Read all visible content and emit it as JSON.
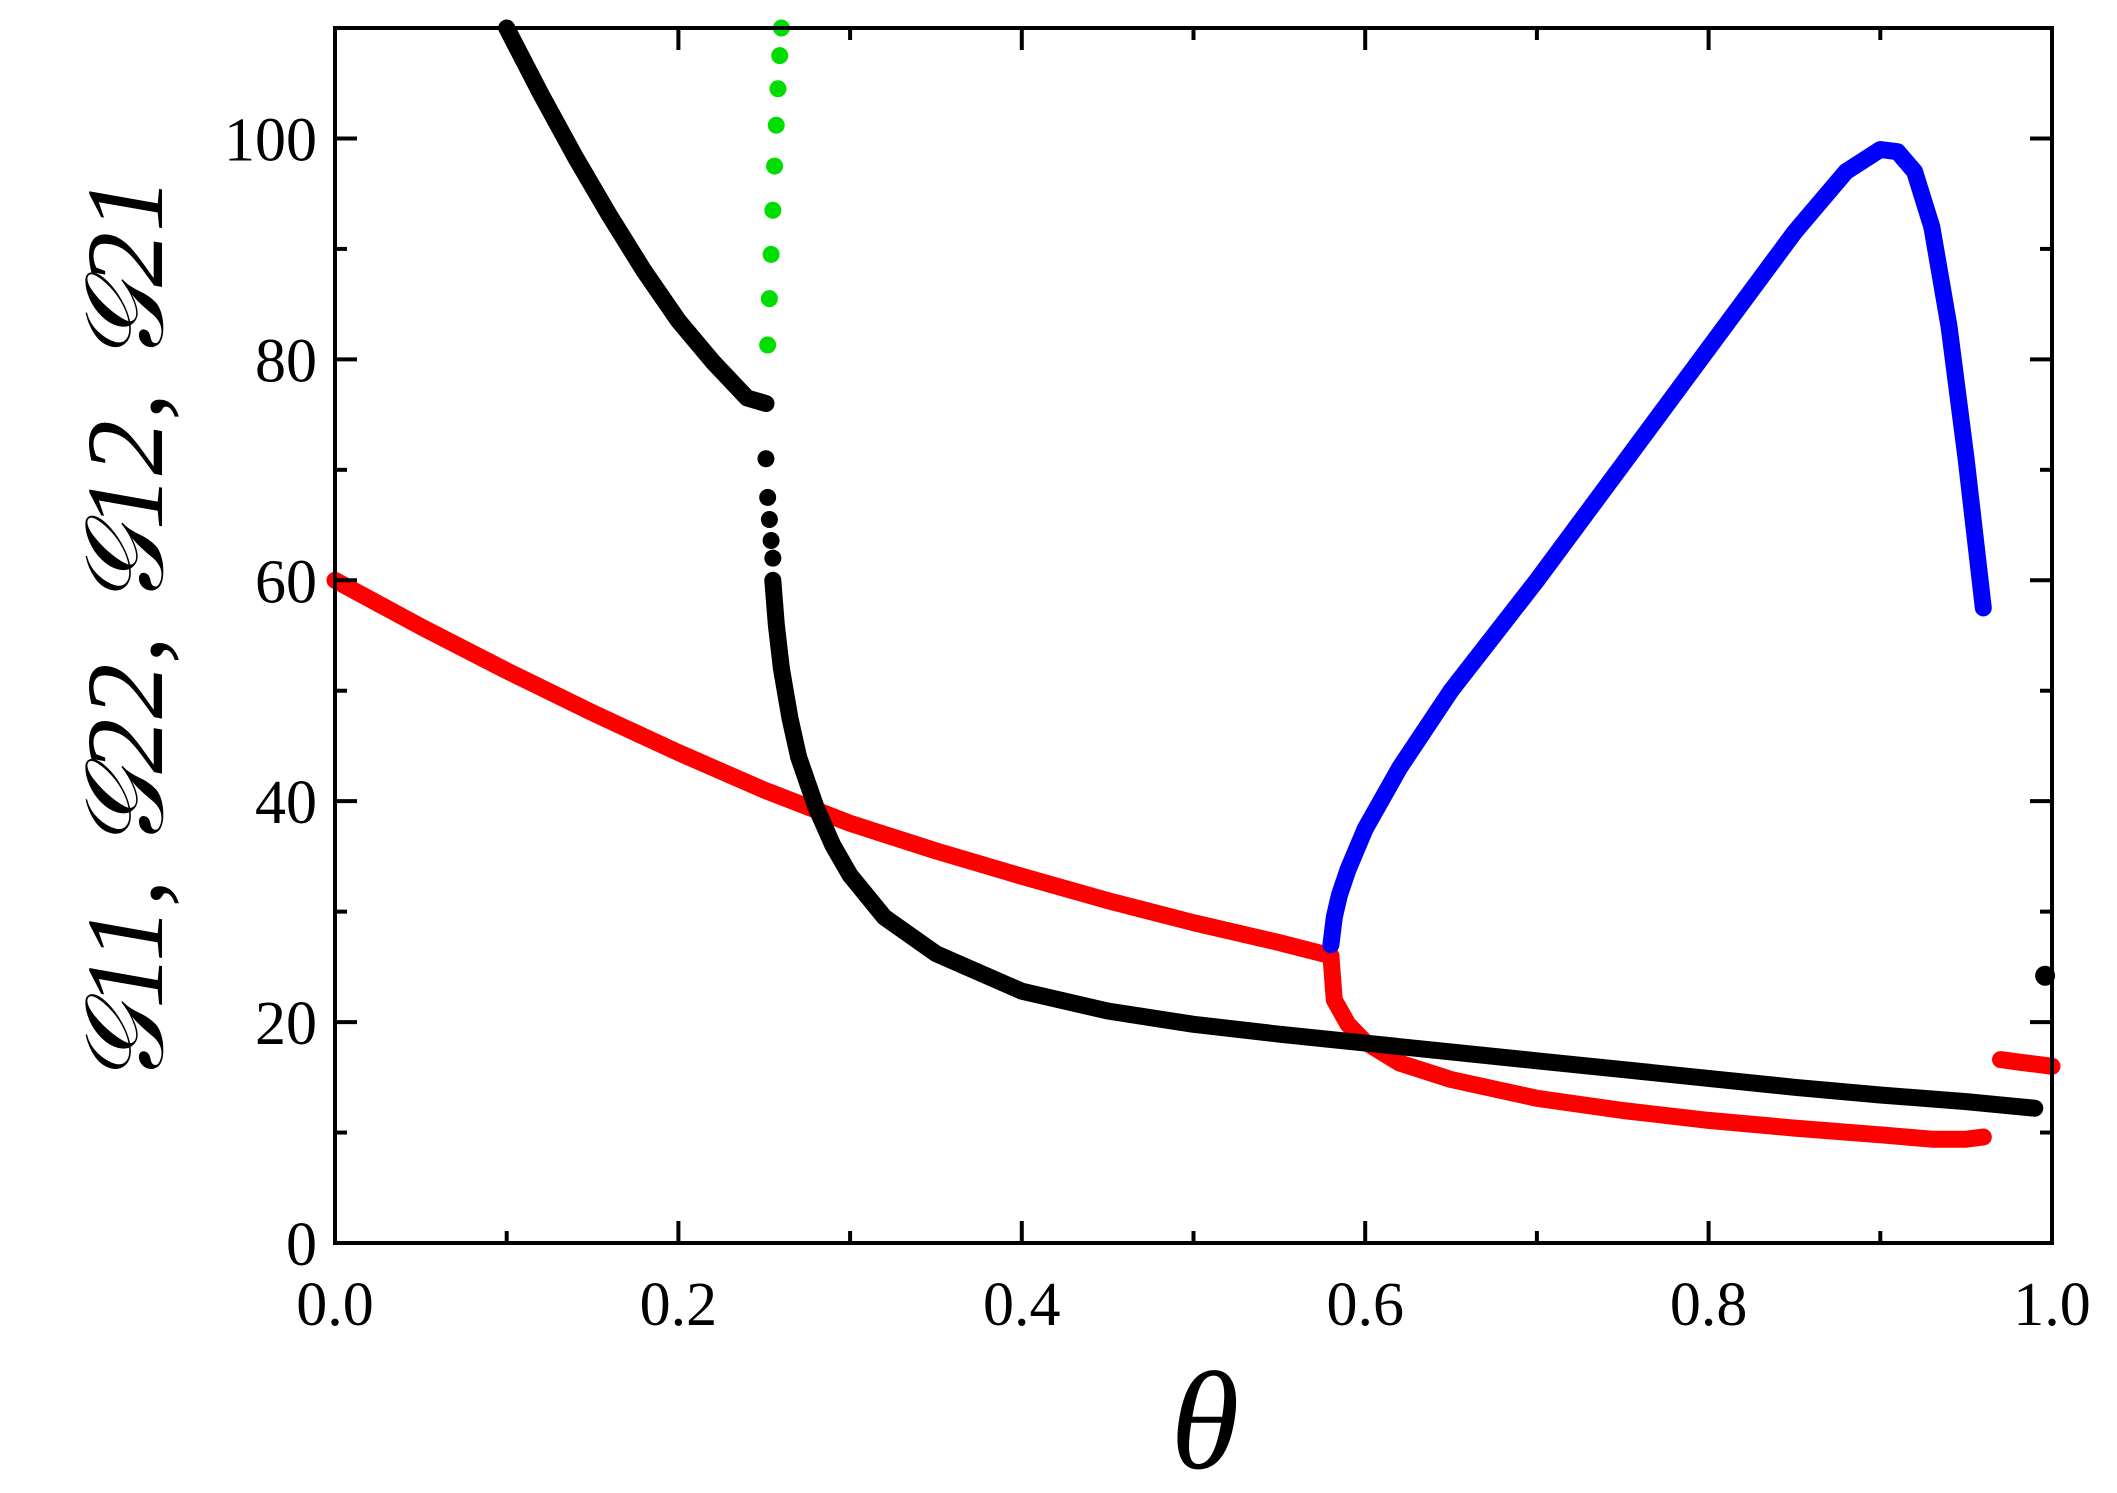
{
  "chart_data": {
    "type": "scatter",
    "xlabel": "θ",
    "ylabel": "𝒢11, 𝒢22, 𝒢12, 𝒢21",
    "xlim": [
      0.0,
      1.0
    ],
    "ylim": [
      0,
      110
    ],
    "x_ticks": [
      "0.0",
      "0.2",
      "0.4",
      "0.6",
      "0.8",
      "1.0"
    ],
    "y_ticks": [
      "0",
      "20",
      "40",
      "60",
      "80",
      "100"
    ],
    "grid": false,
    "series": [
      {
        "color": "#ff0000",
        "x": [
          0.0,
          0.05,
          0.1,
          0.15,
          0.2,
          0.25,
          0.3,
          0.35,
          0.4,
          0.45,
          0.5,
          0.55,
          0.58
        ],
        "y": [
          60.0,
          55.8,
          51.8,
          48.0,
          44.4,
          41.0,
          38.0,
          35.5,
          33.2,
          31.0,
          29.0,
          27.2,
          26.0
        ]
      },
      {
        "color": "#ff0000",
        "x": [
          0.58,
          0.582,
          0.59,
          0.6,
          0.62,
          0.65,
          0.7,
          0.75,
          0.8,
          0.85,
          0.9,
          0.93,
          0.95,
          0.96
        ],
        "y": [
          26.0,
          22.0,
          19.8,
          18.2,
          16.3,
          14.8,
          13.1,
          12.0,
          11.1,
          10.4,
          9.8,
          9.4,
          9.4,
          9.6
        ]
      },
      {
        "color": "#ff0000",
        "x": [
          0.97,
          0.98,
          0.99,
          1.0
        ],
        "y": [
          16.6,
          16.4,
          16.2,
          16.0
        ]
      },
      {
        "color": "#000000",
        "x": [
          0.1,
          0.12,
          0.14,
          0.16,
          0.18,
          0.2,
          0.22,
          0.24,
          0.251
        ],
        "y": [
          110.0,
          104.0,
          98.3,
          93.0,
          88.0,
          83.5,
          79.8,
          76.5,
          76.0
        ]
      },
      {
        "color": "#000000",
        "x": [
          0.251,
          0.252,
          0.253,
          0.254,
          0.255
        ],
        "y": [
          71.0,
          67.5,
          65.5,
          63.6,
          62.0
        ]
      },
      {
        "color": "#000000",
        "x": [
          0.255,
          0.257,
          0.26,
          0.265,
          0.27,
          0.28,
          0.29,
          0.3,
          0.32,
          0.35,
          0.4,
          0.45,
          0.5,
          0.55,
          0.6,
          0.65,
          0.7,
          0.75,
          0.8,
          0.85,
          0.9,
          0.95,
          0.99
        ],
        "y": [
          60.0,
          56.0,
          52.0,
          47.5,
          44.0,
          39.5,
          36.0,
          33.3,
          29.5,
          26.2,
          22.8,
          21.0,
          19.8,
          18.9,
          18.1,
          17.3,
          16.5,
          15.7,
          14.9,
          14.1,
          13.4,
          12.8,
          12.2
        ]
      },
      {
        "color": "#000000",
        "x": [
          0.996
        ],
        "y": [
          24.2
        ]
      },
      {
        "color": "#0000ff",
        "x": [
          0.58,
          0.582,
          0.585,
          0.59,
          0.6,
          0.62,
          0.65,
          0.7,
          0.75,
          0.8,
          0.85,
          0.88,
          0.9,
          0.91,
          0.92,
          0.93,
          0.94,
          0.95,
          0.96
        ],
        "y": [
          27.0,
          29.5,
          31.5,
          33.8,
          37.5,
          43.0,
          50.0,
          60.0,
          70.5,
          81.0,
          91.5,
          97.0,
          99.0,
          98.8,
          97.0,
          92.0,
          83.0,
          71.0,
          57.5
        ]
      },
      {
        "color": "#00dd00",
        "x": [
          0.252,
          0.253,
          0.254,
          0.255,
          0.256,
          0.257,
          0.258,
          0.259,
          0.26
        ],
        "y": [
          81.3,
          85.5,
          89.5,
          93.5,
          97.5,
          101.2,
          104.5,
          107.5,
          110.0
        ]
      }
    ]
  }
}
